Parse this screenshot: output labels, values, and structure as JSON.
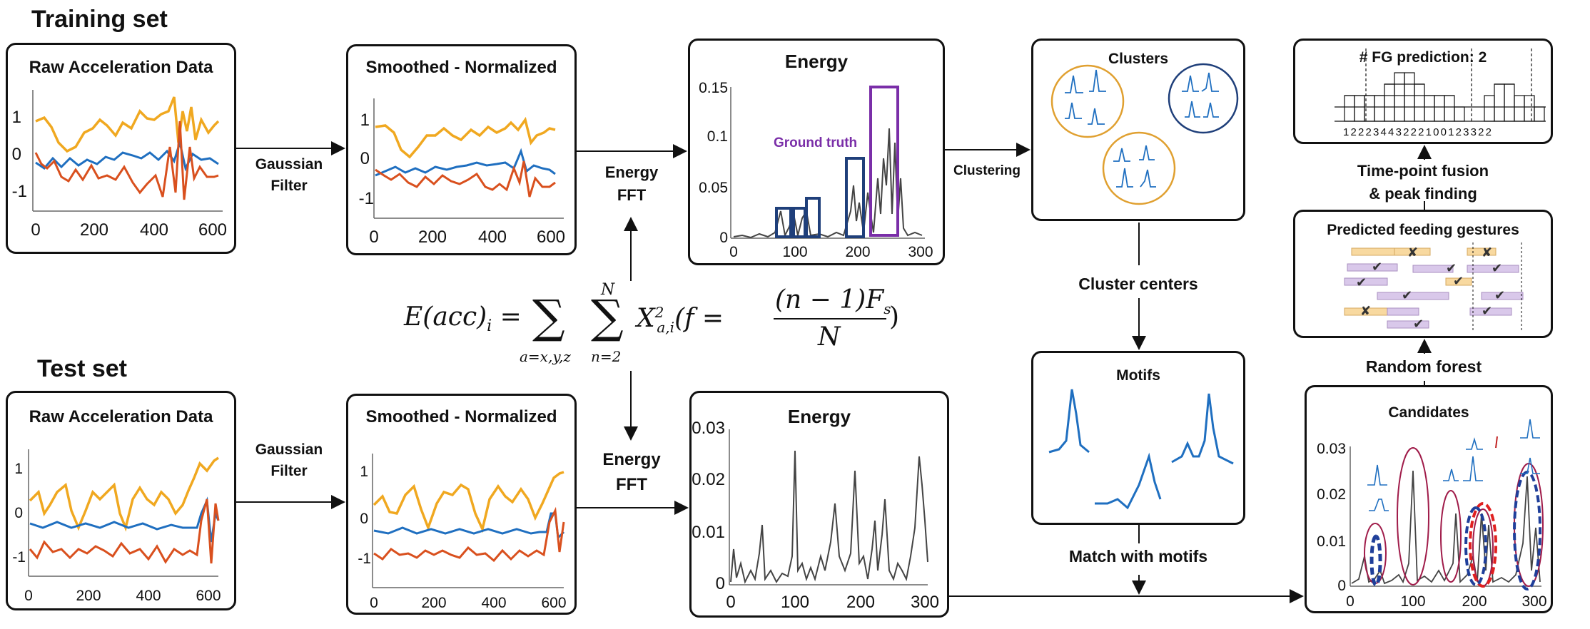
{
  "sections": {
    "training": "Training set",
    "test": "Test set"
  },
  "panels": {
    "raw_train": "Raw Acceleration Data",
    "smooth_train": "Smoothed - Normalized",
    "energy_train": "Energy",
    "clusters": "Clusters",
    "motifs": "Motifs",
    "fg_pred": "# FG prediction: 2",
    "predicted": "Predicted feeding gestures",
    "candidates": "Candidates",
    "raw_test": "Raw Acceleration Data",
    "smooth_test": "Smoothed - Normalized",
    "energy_test": "Energy"
  },
  "labels": {
    "gaussian_1": "Gaussian",
    "gaussian_2": "Filter",
    "energy_fft_1": "Energy",
    "energy_fft_2": "FFT",
    "clustering": "Clustering",
    "cluster_centers": "Cluster centers",
    "match_motifs": "Match with motifs",
    "random_forest": "Random forest",
    "fusion_1": "Time-point fusion",
    "fusion_2": "& peak finding",
    "ground_truth": "Ground truth"
  },
  "fg_counts": "1 2 2 2 3 4 4 3 2 2 2 1 0 0 1 2 3 3 2 2",
  "axes": {
    "raw_x": [
      "0",
      "200",
      "400",
      "600"
    ],
    "raw_y": [
      "1",
      "0",
      "-1"
    ],
    "energy_train_x": [
      "0",
      "100",
      "200",
      "300"
    ],
    "energy_train_y": [
      "0.15",
      "0.1",
      "0.05",
      "0"
    ],
    "energy_test_y": [
      "0.03",
      "0.02",
      "0.01",
      "0"
    ]
  },
  "colors": {
    "x_axis": "#f0a820",
    "y_axis": "#1f6fc0",
    "z_axis": "#d9501e",
    "energy": "#444444",
    "ground_truth": "#7a2ea8",
    "cluster_box": "#1f3f7a",
    "candidate": "#a01c4a",
    "candidate_dash_red": "#e02020",
    "candidate_dash_blue": "#1f3f9a"
  }
}
